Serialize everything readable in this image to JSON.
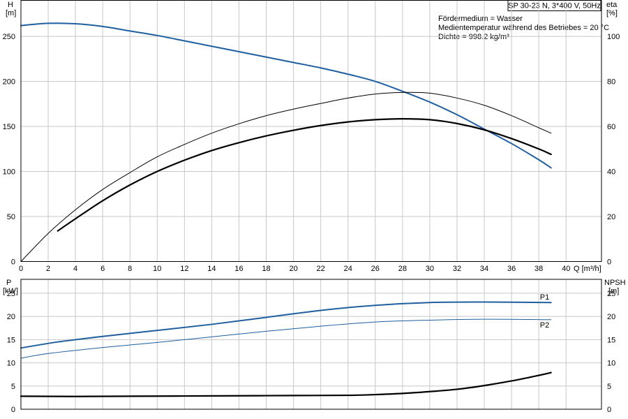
{
  "header": {
    "title": "SP 30-23 N, 3*400 V, 50Hz",
    "info_lines": [
      "Fördermedium = Wasser",
      "Medientemperatur während des Betriebes = 20 °C",
      "Dichte = 998.2 kg/m³"
    ]
  },
  "colors": {
    "blue": "#1f5fa0",
    "black": "#000000",
    "grid": "#c8c8c8"
  },
  "chart_data": [
    {
      "type": "line",
      "name": "upper",
      "axes": {
        "left": {
          "label_line1": "H",
          "label_line2": "[m]",
          "ticks": [
            0,
            50,
            100,
            150,
            200,
            250
          ],
          "ylim": [
            0,
            290
          ]
        },
        "right": {
          "label_line1": "eta",
          "label_line2": "[%]",
          "ticks": [
            0,
            20,
            40,
            60,
            80,
            100
          ],
          "ylim": [
            0,
            116
          ]
        },
        "x": {
          "label": "Q [m³/h]",
          "ticks": [
            0,
            2,
            4,
            6,
            8,
            10,
            12,
            14,
            16,
            18,
            20,
            22,
            24,
            26,
            28,
            30,
            32,
            34,
            36,
            38,
            40
          ],
          "xlim": [
            0,
            42.6
          ]
        }
      },
      "grid": true,
      "series": [
        {
          "name": "",
          "axis": "left",
          "color": "blue",
          "width": 2,
          "x": [
            0,
            2,
            4,
            6,
            8,
            10,
            12,
            14,
            16,
            18,
            20,
            22,
            24,
            26,
            28,
            30,
            32,
            34,
            36,
            38,
            38.9
          ],
          "y": [
            262,
            264.5,
            264,
            261,
            256,
            251,
            245,
            239,
            233,
            227,
            221,
            215,
            208,
            200,
            189,
            177,
            163,
            147,
            131,
            113,
            104
          ]
        },
        {
          "name": "",
          "axis": "right",
          "color": "black",
          "width": 1,
          "x": [
            0,
            2,
            4,
            6,
            8,
            10,
            12,
            14,
            16,
            18,
            20,
            22,
            24,
            26,
            28,
            30,
            32,
            34,
            36,
            38,
            38.9
          ],
          "y": [
            0,
            12.5,
            23,
            32,
            39.5,
            46.5,
            52,
            57,
            61.2,
            64.8,
            67.7,
            70.2,
            72.6,
            74.4,
            75.1,
            74.8,
            72.6,
            69.4,
            64.8,
            59.4,
            57
          ]
        },
        {
          "name": "",
          "axis": "right",
          "color": "black",
          "width": 2.2,
          "x": [
            2.7,
            4,
            6,
            8,
            10,
            12,
            14,
            16,
            18,
            20,
            22,
            24,
            26,
            28,
            30,
            32,
            34,
            36,
            38,
            38.9
          ],
          "y": [
            13.6,
            19,
            27,
            34,
            40,
            45,
            49.3,
            52.8,
            55.8,
            58.3,
            60.4,
            62,
            63,
            63.4,
            63,
            61.3,
            58.5,
            54.6,
            50,
            47.6
          ]
        }
      ]
    },
    {
      "type": "line",
      "name": "lower",
      "axes": {
        "left": {
          "label_line1": "P",
          "label_line2": "[kW]",
          "ticks": [
            0,
            5,
            10,
            15,
            20,
            25
          ],
          "ylim": [
            0,
            28
          ]
        },
        "right": {
          "label_line1": "NPSH",
          "label_line2": "[m]",
          "ticks": [
            0,
            5,
            10,
            15,
            20,
            25
          ],
          "ylim": [
            0,
            28
          ]
        },
        "x": {
          "xlim": [
            0,
            42.6
          ]
        }
      },
      "grid": true,
      "series": [
        {
          "name": "P1",
          "axis": "left",
          "color": "blue",
          "width": 2,
          "x": [
            0,
            2.7,
            6,
            10,
            14,
            18,
            22,
            26,
            30,
            34,
            38.9
          ],
          "y": [
            13.2,
            14.5,
            15.7,
            17,
            18.3,
            19.8,
            21.3,
            22.4,
            23,
            23.1,
            23
          ]
        },
        {
          "name": "P2",
          "axis": "left",
          "color": "blue",
          "width": 1,
          "x": [
            0,
            2,
            6,
            10,
            14,
            18,
            22,
            26,
            30,
            34,
            38.9
          ],
          "y": [
            11,
            12,
            13.3,
            14.4,
            15.6,
            16.8,
            17.9,
            18.8,
            19.2,
            19.4,
            19.3
          ]
        },
        {
          "name": "",
          "axis": "right",
          "color": "black",
          "width": 2.2,
          "x": [
            0,
            4,
            8,
            12,
            16,
            20,
            24,
            26,
            28,
            30,
            32,
            34,
            36,
            38,
            38.9
          ],
          "y": [
            2.8,
            2.75,
            2.8,
            2.85,
            2.9,
            2.95,
            3,
            3.15,
            3.4,
            3.8,
            4.3,
            5.1,
            6.1,
            7.3,
            7.9
          ]
        }
      ]
    }
  ]
}
